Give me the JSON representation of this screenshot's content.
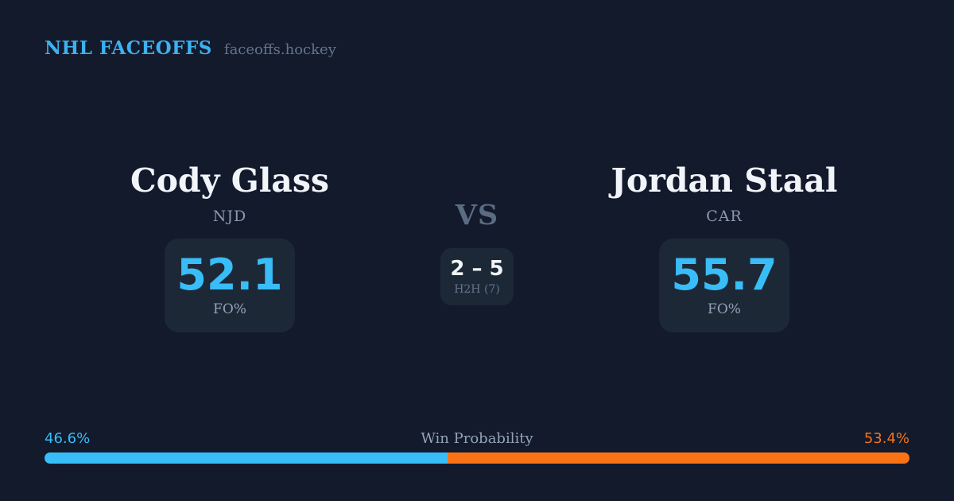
{
  "header": {
    "brand": "NHL FACEOFFS",
    "site": "faceoffs.hockey"
  },
  "matchup": {
    "vs_label": "VS",
    "h2h": {
      "score": "2 – 5",
      "label": "H2H (7)"
    },
    "players": [
      {
        "name": "Cody Glass",
        "team": "NJD",
        "fo_pct": "52.1",
        "stat_label": "FO%"
      },
      {
        "name": "Jordan Staal",
        "team": "CAR",
        "fo_pct": "55.7",
        "stat_label": "FO%"
      }
    ]
  },
  "win_probability": {
    "title": "Win Probability",
    "left_label": "46.6%",
    "right_label": "53.4%",
    "left_pct": 46.6,
    "right_pct": 53.4
  },
  "colors": {
    "background": "#121a2c",
    "card": "#1d2836",
    "accent_blue": "#38bdf8",
    "accent_orange": "#f97316",
    "text_primary": "#f1f5f9",
    "text_muted": "#94a3b8",
    "text_dim": "#64748b"
  }
}
